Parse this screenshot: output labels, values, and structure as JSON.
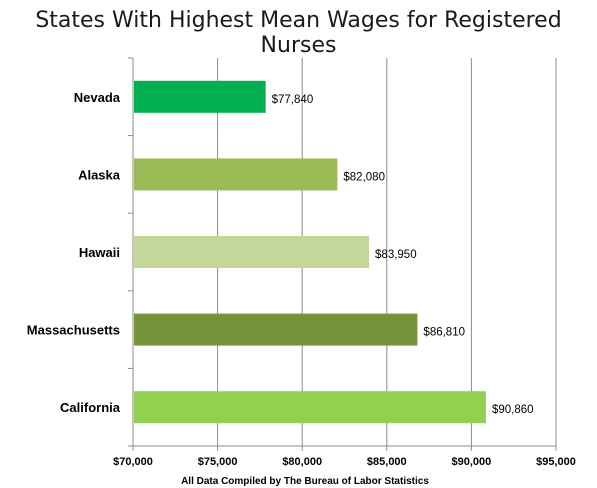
{
  "chart_data": {
    "type": "bar",
    "orientation": "horizontal",
    "title": "States With Highest Mean Wages for Registered Nurses",
    "xlabel": "All Data Compiled by The Bureau of Labor Statistics",
    "ylabel": "",
    "categories": [
      "Nevada",
      "Alaska",
      "Hawaii",
      "Massachusetts",
      "California"
    ],
    "values": [
      77840,
      82080,
      83950,
      86810,
      90860
    ],
    "value_labels": [
      "$77,840",
      "$82,080",
      "$83,950",
      "$86,810",
      "$90,860"
    ],
    "bar_colors": [
      "#00b050",
      "#9bbb59",
      "#c4d79b",
      "#77933c",
      "#92d050"
    ],
    "xlim": [
      70000,
      95000
    ],
    "x_ticks": [
      70000,
      75000,
      80000,
      85000,
      90000,
      95000
    ],
    "x_tick_labels": [
      "$70,000",
      "$75,000",
      "$80,000",
      "$85,000",
      "$90,000",
      "$95,000"
    ],
    "grid": "vertical",
    "legend": "none"
  }
}
